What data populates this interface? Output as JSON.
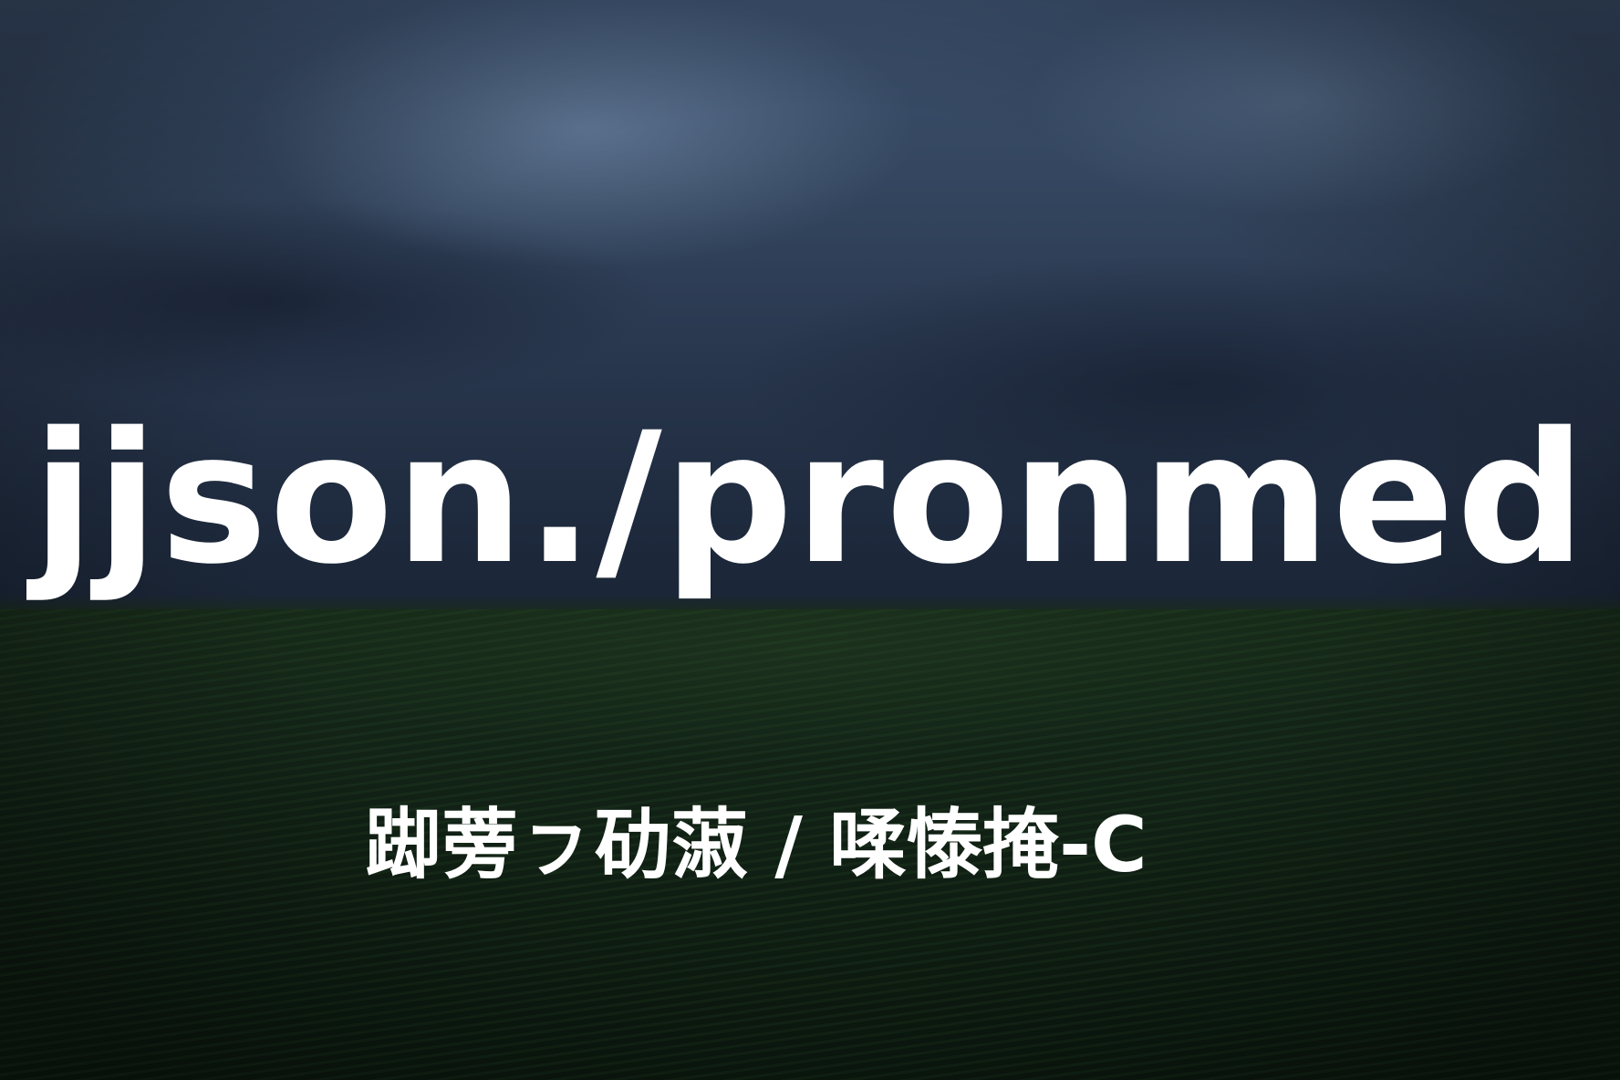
{
  "image": {
    "title_text": "jjson./pronmed",
    "subtitle_text": "踋蒡ㇷ劯蔋 / 㖻㥭掩-C",
    "colors": {
      "sky_top": "#3b4f6c",
      "sky_bottom": "#1a2536",
      "field": "#112115",
      "text": "#ffffff"
    }
  }
}
